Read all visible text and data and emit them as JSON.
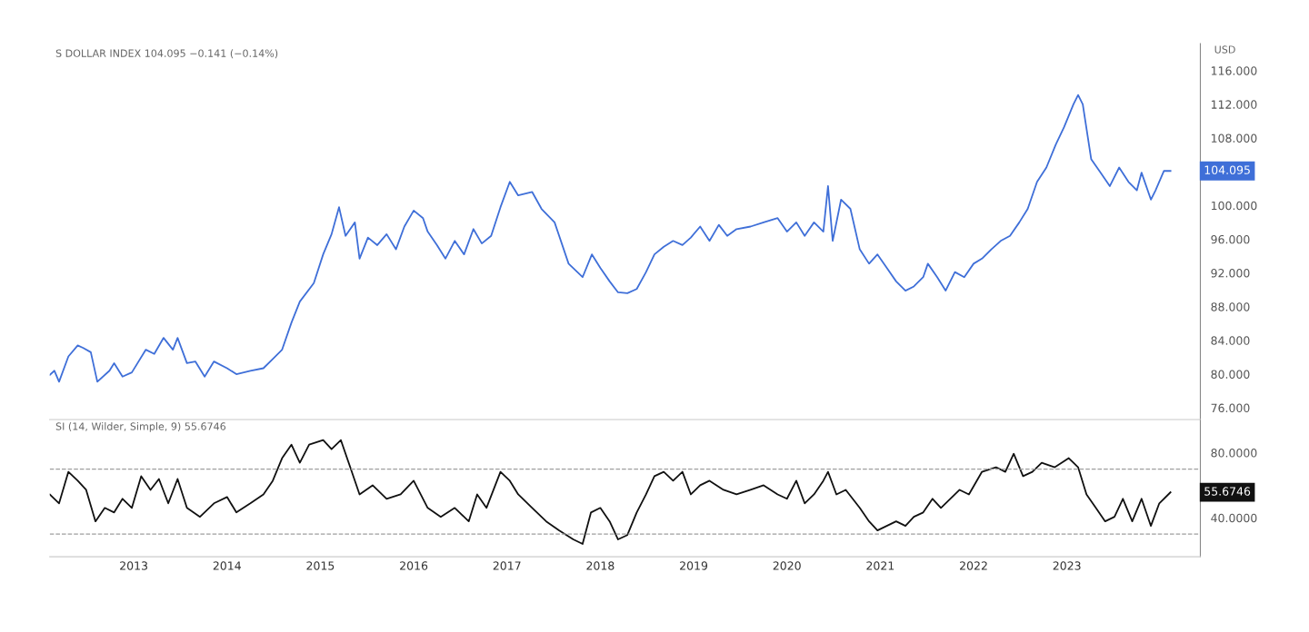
{
  "chart_data": [
    {
      "type": "line",
      "title": "S DOLLAR INDEX 104.095 −0.141 (−0.14%)",
      "ylabel": "USD",
      "tick_labels": "y",
      "grid": false,
      "legend": false,
      "xlim": [
        2012.1,
        2024.43
      ],
      "ylim": [
        74.6,
        119.2
      ],
      "yticks": [
        {
          "value": 76,
          "label": "76.000"
        },
        {
          "value": 80,
          "label": "80.000"
        },
        {
          "value": 84,
          "label": "84.000"
        },
        {
          "value": 88,
          "label": "88.000"
        },
        {
          "value": 92,
          "label": "92.000"
        },
        {
          "value": 96,
          "label": "96.000"
        },
        {
          "value": 100,
          "label": "100.000"
        },
        {
          "value": 108,
          "label": "108.000"
        },
        {
          "value": 112,
          "label": "112.000"
        },
        {
          "value": 116,
          "label": "116.000"
        }
      ],
      "annotations": [
        "104.095"
      ],
      "series": [
        {
          "color": "#3f6fd8",
          "x": [
            2012.1,
            2012.15,
            2012.2,
            2012.3,
            2012.4,
            2012.46,
            2012.54,
            2012.61,
            2012.74,
            2012.79,
            2012.88,
            2012.98,
            2013.13,
            2013.22,
            2013.32,
            2013.42,
            2013.47,
            2013.57,
            2013.66,
            2013.76,
            2013.86,
            2014.0,
            2014.1,
            2014.25,
            2014.39,
            2014.49,
            2014.59,
            2014.69,
            2014.78,
            2014.93,
            2015.03,
            2015.12,
            2015.2,
            2015.27,
            2015.37,
            2015.42,
            2015.51,
            2015.61,
            2015.71,
            2015.81,
            2015.9,
            2016.0,
            2016.1,
            2016.15,
            2016.25,
            2016.34,
            2016.44,
            2016.54,
            2016.64,
            2016.73,
            2016.83,
            2016.93,
            2017.03,
            2017.12,
            2017.27,
            2017.37,
            2017.51,
            2017.66,
            2017.81,
            2017.91,
            2018.0,
            2018.1,
            2018.19,
            2018.29,
            2018.39,
            2018.49,
            2018.58,
            2018.68,
            2018.78,
            2018.88,
            2018.97,
            2019.07,
            2019.17,
            2019.27,
            2019.36,
            2019.46,
            2019.61,
            2019.75,
            2019.9,
            2020.0,
            2020.1,
            2020.19,
            2020.29,
            2020.39,
            2020.44,
            2020.49,
            2020.58,
            2020.68,
            2020.78,
            2020.88,
            2020.97,
            2021.07,
            2021.17,
            2021.27,
            2021.36,
            2021.46,
            2021.51,
            2021.61,
            2021.7,
            2021.8,
            2021.9,
            2022.0,
            2022.09,
            2022.19,
            2022.29,
            2022.39,
            2022.49,
            2022.58,
            2022.68,
            2022.78,
            2022.88,
            2022.97,
            2023.07,
            2023.12,
            2023.17,
            2023.26,
            2023.36,
            2023.46,
            2023.56,
            2023.66,
            2023.75,
            2023.8,
            2023.9,
            2023.95,
            2024.04,
            2024.11
          ],
          "values": [
            79.9,
            80.4,
            79.1,
            82.1,
            83.4,
            83.1,
            82.6,
            79.1,
            80.4,
            81.3,
            79.7,
            80.2,
            82.9,
            82.4,
            84.3,
            82.9,
            84.3,
            81.3,
            81.5,
            79.7,
            81.5,
            80.7,
            80.0,
            80.4,
            80.7,
            81.8,
            82.9,
            86.1,
            88.6,
            90.8,
            94.2,
            96.6,
            99.8,
            96.4,
            98.0,
            93.7,
            96.2,
            95.3,
            96.6,
            94.8,
            97.5,
            99.4,
            98.5,
            96.9,
            95.3,
            93.7,
            95.8,
            94.2,
            97.2,
            95.5,
            96.4,
            99.8,
            102.8,
            101.2,
            101.6,
            99.6,
            98.0,
            93.1,
            91.5,
            94.2,
            92.6,
            91.0,
            89.7,
            89.6,
            90.1,
            92.1,
            94.2,
            95.1,
            95.8,
            95.3,
            96.2,
            97.5,
            95.8,
            97.7,
            96.4,
            97.2,
            97.5,
            98.0,
            98.5,
            96.9,
            98.0,
            96.4,
            98.0,
            96.9,
            102.3,
            95.8,
            100.7,
            99.6,
            94.8,
            93.1,
            94.2,
            92.6,
            91.0,
            89.9,
            90.4,
            91.5,
            93.1,
            91.5,
            89.9,
            92.1,
            91.5,
            93.1,
            93.7,
            94.8,
            95.8,
            96.4,
            98.0,
            99.6,
            102.8,
            104.5,
            107.2,
            109.3,
            112.0,
            113.1,
            112.0,
            105.5,
            103.9,
            102.3,
            104.5,
            102.8,
            101.8,
            103.9,
            100.7,
            101.8,
            104.1,
            104.1
          ]
        }
      ]
    },
    {
      "type": "line",
      "title": "SI (14, Wilder, Simple, 9) 55.6746",
      "grid": false,
      "legend": false,
      "xlim": [
        2012.1,
        2024.43
      ],
      "ylim": [
        16,
        100
      ],
      "xticks": [
        2013,
        2014,
        2015,
        2016,
        2017,
        2018,
        2019,
        2020,
        2021,
        2022,
        2023
      ],
      "yticks": [
        {
          "value": 40,
          "label": "40.0000"
        },
        {
          "value": 80,
          "label": "80.0000"
        }
      ],
      "ref_lines": [
        {
          "axis": "y",
          "value": 70,
          "color": "#9e9e9e",
          "line_style": "dashed"
        },
        {
          "axis": "y",
          "value": 30,
          "color": "#9e9e9e",
          "line_style": "dashed"
        }
      ],
      "annotations": [
        "55.6746"
      ],
      "series": [
        {
          "color": "#111111",
          "x": [
            2012.1,
            2012.2,
            2012.3,
            2012.4,
            2012.49,
            2012.59,
            2012.69,
            2012.79,
            2012.88,
            2012.98,
            2013.08,
            2013.18,
            2013.27,
            2013.37,
            2013.47,
            2013.57,
            2013.71,
            2013.86,
            2014.0,
            2014.1,
            2014.25,
            2014.39,
            2014.49,
            2014.59,
            2014.69,
            2014.78,
            2014.88,
            2015.03,
            2015.12,
            2015.22,
            2015.32,
            2015.42,
            2015.56,
            2015.71,
            2015.86,
            2016.0,
            2016.15,
            2016.29,
            2016.44,
            2016.59,
            2016.68,
            2016.78,
            2016.93,
            2017.03,
            2017.12,
            2017.27,
            2017.42,
            2017.56,
            2017.71,
            2017.81,
            2017.9,
            2018.0,
            2018.1,
            2018.19,
            2018.29,
            2018.39,
            2018.49,
            2018.58,
            2018.68,
            2018.78,
            2018.88,
            2018.97,
            2019.07,
            2019.17,
            2019.32,
            2019.46,
            2019.61,
            2019.75,
            2019.9,
            2020.0,
            2020.1,
            2020.19,
            2020.29,
            2020.39,
            2020.44,
            2020.53,
            2020.63,
            2020.78,
            2020.88,
            2020.97,
            2021.07,
            2021.17,
            2021.27,
            2021.36,
            2021.46,
            2021.56,
            2021.65,
            2021.75,
            2021.85,
            2021.95,
            2022.09,
            2022.24,
            2022.34,
            2022.43,
            2022.53,
            2022.63,
            2022.73,
            2022.87,
            2023.02,
            2023.12,
            2023.21,
            2023.31,
            2023.41,
            2023.51,
            2023.6,
            2023.7,
            2023.8,
            2023.9,
            2023.99,
            2024.11
          ],
          "values": [
            54.4,
            48.9,
            68.3,
            62.8,
            57.2,
            37.8,
            46.1,
            43.3,
            51.7,
            46.1,
            65.6,
            57.2,
            63.9,
            48.9,
            63.9,
            46.1,
            40.6,
            48.9,
            52.8,
            43.3,
            48.9,
            54.4,
            62.8,
            76.7,
            85.0,
            73.9,
            85.0,
            87.8,
            82.2,
            87.8,
            71.1,
            54.4,
            60.0,
            51.7,
            54.4,
            62.8,
            46.1,
            40.6,
            46.1,
            37.8,
            54.4,
            46.1,
            68.3,
            62.8,
            54.4,
            46.1,
            37.8,
            32.2,
            26.7,
            23.9,
            43.3,
            46.1,
            37.8,
            26.7,
            29.4,
            43.3,
            54.4,
            65.6,
            68.3,
            62.8,
            68.3,
            54.4,
            60.0,
            62.8,
            57.2,
            54.4,
            57.2,
            60.0,
            54.4,
            51.7,
            62.8,
            48.9,
            54.4,
            62.8,
            68.3,
            54.4,
            57.2,
            46.1,
            37.8,
            32.2,
            35.0,
            37.8,
            35.0,
            40.6,
            43.3,
            51.7,
            46.1,
            51.7,
            57.2,
            54.4,
            68.3,
            71.1,
            68.3,
            79.4,
            65.6,
            68.3,
            73.9,
            71.1,
            76.7,
            71.1,
            54.4,
            46.1,
            37.8,
            40.6,
            51.7,
            37.8,
            51.7,
            35.0,
            48.9,
            55.7
          ]
        }
      ]
    }
  ]
}
